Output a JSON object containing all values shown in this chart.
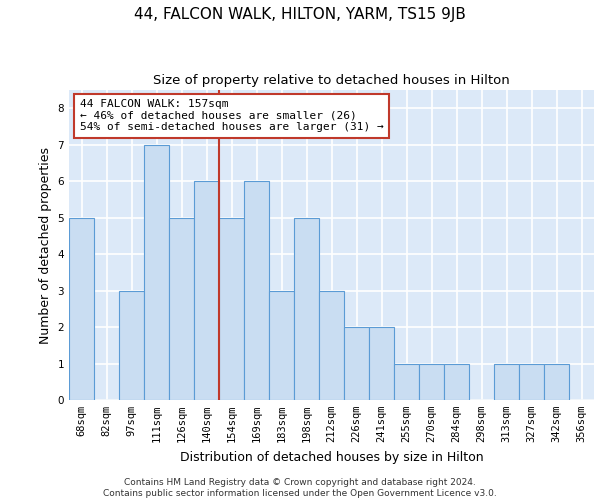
{
  "title": "44, FALCON WALK, HILTON, YARM, TS15 9JB",
  "subtitle": "Size of property relative to detached houses in Hilton",
  "xlabel": "Distribution of detached houses by size in Hilton",
  "ylabel": "Number of detached properties",
  "categories": [
    "68sqm",
    "82sqm",
    "97sqm",
    "111sqm",
    "126sqm",
    "140sqm",
    "154sqm",
    "169sqm",
    "183sqm",
    "198sqm",
    "212sqm",
    "226sqm",
    "241sqm",
    "255sqm",
    "270sqm",
    "284sqm",
    "298sqm",
    "313sqm",
    "327sqm",
    "342sqm",
    "356sqm"
  ],
  "values": [
    5,
    0,
    3,
    7,
    5,
    6,
    5,
    6,
    3,
    5,
    3,
    2,
    2,
    1,
    1,
    1,
    0,
    1,
    1,
    1,
    0
  ],
  "bar_color": "#c9ddf2",
  "bar_edge_color": "#5b9bd5",
  "ref_line_index": 6.0,
  "ref_line_color": "#c0392b",
  "annotation_line1": "44 FALCON WALK: 157sqm",
  "annotation_line2": "← 46% of detached houses are smaller (26)",
  "annotation_line3": "54% of semi-detached houses are larger (31) →",
  "annotation_box_color": "#ffffff",
  "annotation_box_edge_color": "#c0392b",
  "ylim": [
    0,
    8.5
  ],
  "yticks": [
    0,
    1,
    2,
    3,
    4,
    5,
    6,
    7,
    8
  ],
  "footer_text": "Contains HM Land Registry data © Crown copyright and database right 2024.\nContains public sector information licensed under the Open Government Licence v3.0.",
  "background_color": "#dce9f8",
  "grid_color": "#ffffff",
  "title_fontsize": 11,
  "subtitle_fontsize": 9.5,
  "axis_label_fontsize": 9,
  "tick_fontsize": 7.5,
  "annotation_fontsize": 8,
  "footer_fontsize": 6.5
}
